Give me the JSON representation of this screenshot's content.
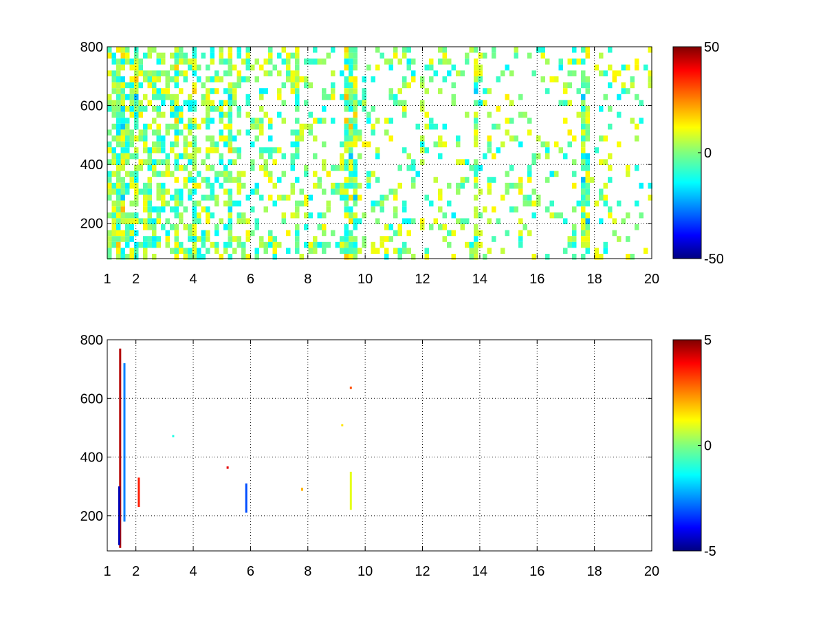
{
  "chart_data": [
    {
      "type": "heatmap",
      "title": "",
      "xlabel": "",
      "ylabel": "",
      "xlim": [
        1,
        20
      ],
      "ylim": [
        80,
        800
      ],
      "x_ticks": [
        "1",
        "2",
        "4",
        "6",
        "8",
        "10",
        "12",
        "14",
        "16",
        "18",
        "20"
      ],
      "y_ticks": [
        "200",
        "400",
        "600",
        "800"
      ],
      "grid": true,
      "colormap": "jet",
      "clim": [
        -50,
        50
      ],
      "colorbar_ticks": [
        "50",
        "0",
        "-50"
      ],
      "dense_columns_x": [
        1.4,
        2.0,
        3.3,
        4.0,
        5.2,
        7.5,
        9.3,
        9.5,
        13.8,
        17.6
      ],
      "description_values": {
        "typical_range": [
          -15,
          15
        ],
        "note": "dense scattered cells, mostly near 0 (cyan/green/yellow), white = no data"
      }
    },
    {
      "type": "heatmap",
      "title": "",
      "xlabel": "",
      "ylabel": "",
      "xlim": [
        1,
        20
      ],
      "ylim": [
        80,
        800
      ],
      "x_ticks": [
        "1",
        "2",
        "4",
        "6",
        "8",
        "10",
        "12",
        "14",
        "16",
        "18",
        "20"
      ],
      "y_ticks": [
        "200",
        "400",
        "600",
        "800"
      ],
      "grid": true,
      "colormap": "jet",
      "clim": [
        -5,
        5
      ],
      "colorbar_ticks": [
        "5",
        "0",
        "-5"
      ],
      "points": [
        {
          "x": 1.45,
          "y0": 90,
          "y1": 770,
          "v": 4.5
        },
        {
          "x": 1.42,
          "y0": 100,
          "y1": 300,
          "v": -4.5
        },
        {
          "x": 1.6,
          "y0": 180,
          "y1": 720,
          "v": -2.5
        },
        {
          "x": 2.1,
          "y0": 230,
          "y1": 330,
          "v": 3.5
        },
        {
          "x": 3.3,
          "y0": 470,
          "y1": 475,
          "v": -1
        },
        {
          "x": 5.2,
          "y0": 360,
          "y1": 368,
          "v": 4
        },
        {
          "x": 5.85,
          "y0": 210,
          "y1": 310,
          "v": -3
        },
        {
          "x": 7.8,
          "y0": 285,
          "y1": 295,
          "v": 2
        },
        {
          "x": 9.2,
          "y0": 505,
          "y1": 512,
          "v": 1.5
        },
        {
          "x": 9.5,
          "y0": 220,
          "y1": 350,
          "v": 1
        },
        {
          "x": 9.5,
          "y0": 632,
          "y1": 640,
          "v": 3
        }
      ]
    }
  ]
}
